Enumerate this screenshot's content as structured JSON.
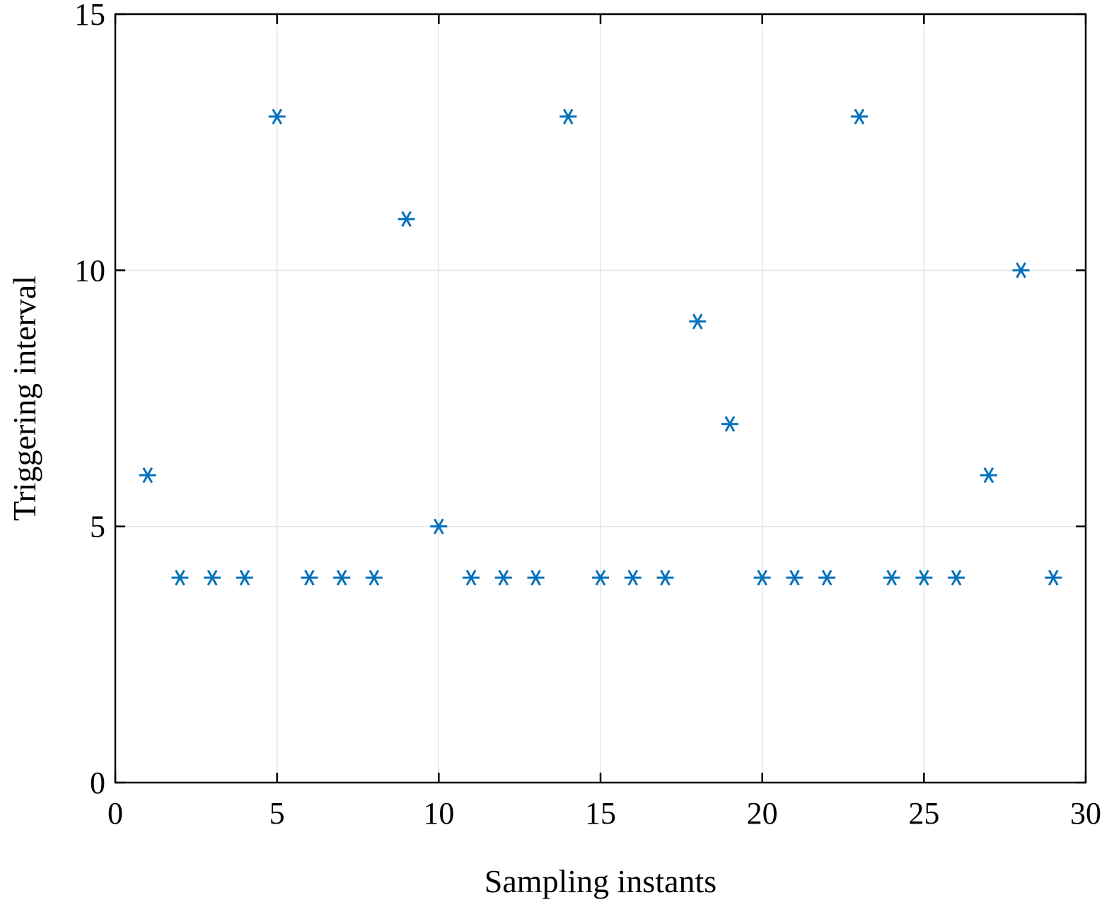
{
  "chart_data": {
    "type": "scatter",
    "title": "",
    "xlabel": "Sampling instants",
    "ylabel": "Triggering interval",
    "xlim": [
      0,
      30
    ],
    "ylim": [
      0,
      15
    ],
    "xticks": [
      0,
      5,
      10,
      15,
      20,
      25,
      30
    ],
    "yticks": [
      0,
      5,
      10,
      15
    ],
    "xtick_labels": [
      "0",
      "5",
      "10",
      "15",
      "20",
      "25",
      "30"
    ],
    "ytick_labels": [
      "0",
      "5",
      "10",
      "15"
    ],
    "grid": true,
    "marker": "asterisk",
    "color": "#0072bd",
    "series": [
      {
        "x": [
          1,
          2,
          3,
          4,
          5,
          6,
          7,
          8,
          9,
          10,
          11,
          12,
          13,
          14,
          15,
          16,
          17,
          18,
          19,
          20,
          21,
          22,
          23,
          24,
          25,
          26,
          27,
          28,
          29
        ],
        "values": [
          6,
          4,
          4,
          4,
          13,
          4,
          4,
          4,
          11,
          5,
          4,
          4,
          4,
          13,
          4,
          4,
          4,
          9,
          7,
          4,
          4,
          4,
          13,
          4,
          4,
          4,
          6,
          10,
          4
        ]
      }
    ]
  }
}
